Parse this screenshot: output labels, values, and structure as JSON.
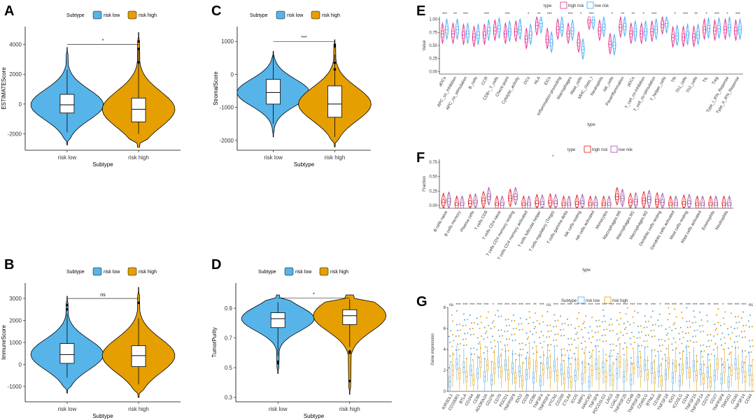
{
  "colors": {
    "risk_low": "#56B4E9",
    "risk_high": "#E69F00",
    "high_risk": "#E7298A",
    "low_risk": "#3FA9F5",
    "F_high": "#E41A1C",
    "F_low": "#984EA3",
    "G_low": "#4FA3E0",
    "G_high": "#E69F00"
  },
  "chart_data": [
    {
      "id": "A",
      "type": "violin",
      "panel_label": "A",
      "legend_title": "Subtype",
      "legend_items": [
        "risk low",
        "risk high"
      ],
      "xlabel": "Subtype",
      "ylabel": "ESTIMATEScore",
      "categories": [
        "risk low",
        "risk high"
      ],
      "ylim": [
        -3100,
        5200
      ],
      "yticks": [
        -2000,
        0,
        2000,
        4000
      ],
      "ytick_labels": [
        "-2000",
        "0",
        "2000",
        "4000"
      ],
      "significance": "*",
      "bracket_y": 4000,
      "groups": [
        {
          "name": "risk low",
          "min": -1900,
          "q1": -600,
          "median": -50,
          "q3": 650,
          "max": 2300,
          "top": 3800,
          "bottom": -2750,
          "outliers": []
        },
        {
          "name": "risk high",
          "min": -2000,
          "q1": -1200,
          "median": -350,
          "q3": 400,
          "max": 3700,
          "top": 4800,
          "bottom": -2900,
          "outliers": [
            2800,
            4200,
            3700
          ]
        }
      ]
    },
    {
      "id": "B",
      "type": "violin",
      "panel_label": "B",
      "legend_title": "Subtype",
      "legend_items": [
        "risk low",
        "risk high"
      ],
      "xlabel": "Subtype",
      "ylabel": "ImmuneScore",
      "categories": [
        "risk low",
        "risk high"
      ],
      "ylim": [
        -1700,
        3700
      ],
      "yticks": [
        -1000,
        0,
        1000,
        2000,
        3000
      ],
      "ytick_labels": [
        "-1000",
        "0",
        "1000",
        "2000",
        "3000"
      ],
      "significance": "ns",
      "bracket_y": 3000,
      "groups": [
        {
          "name": "risk low",
          "min": -600,
          "q1": 50,
          "median": 450,
          "q3": 950,
          "max": 2300,
          "top": 3100,
          "bottom": -1300,
          "outliers": [
            2500,
            2700
          ]
        },
        {
          "name": "risk high",
          "min": -900,
          "q1": -100,
          "median": 400,
          "q3": 850,
          "max": 2100,
          "top": 3500,
          "bottom": -1500,
          "outliers": [
            2800
          ]
        }
      ]
    },
    {
      "id": "C",
      "type": "violin",
      "panel_label": "C",
      "legend_title": "Subtype",
      "legend_items": [
        "risk low",
        "risk high"
      ],
      "xlabel": "Subtype",
      "ylabel": "StromalScore",
      "categories": [
        "risk low",
        "risk high"
      ],
      "ylim": [
        -2300,
        1450
      ],
      "yticks": [
        -2000,
        -1000,
        0,
        1000
      ],
      "ytick_labels": [
        "-2000",
        "-1000",
        "0",
        "1000"
      ],
      "significance": "***",
      "bracket_y": 1000,
      "groups": [
        {
          "name": "risk low",
          "min": -1500,
          "q1": -900,
          "median": -550,
          "q3": -150,
          "max": 600,
          "top": 700,
          "bottom": -1900,
          "outliers": []
        },
        {
          "name": "risk high",
          "min": -1900,
          "q1": -1300,
          "median": -900,
          "q3": -350,
          "max": 600,
          "top": 1050,
          "bottom": -2200,
          "outliers": [
            900,
            850,
            350,
            150
          ]
        }
      ]
    },
    {
      "id": "D",
      "type": "violin",
      "panel_label": "D",
      "legend_title": "Subtype",
      "legend_items": [
        "risk low",
        "risk high"
      ],
      "xlabel": "Subtype",
      "ylabel": "TumorPurity",
      "categories": [
        "risk low",
        "risk high"
      ],
      "ylim": [
        0.27,
        1.07
      ],
      "yticks": [
        0.3,
        0.5,
        0.7,
        0.9
      ],
      "ytick_labels": [
        "0.3",
        "0.5",
        "0.7",
        "0.9"
      ],
      "significance": "*",
      "bracket_y": 0.97,
      "groups": [
        {
          "name": "risk low",
          "min": 0.58,
          "q1": 0.77,
          "median": 0.83,
          "q3": 0.87,
          "max": 0.94,
          "top": 0.99,
          "bottom": 0.46,
          "outliers": [
            0.54,
            0.53
          ]
        },
        {
          "name": "risk high",
          "min": 0.64,
          "q1": 0.79,
          "median": 0.85,
          "q3": 0.89,
          "max": 0.96,
          "top": 0.99,
          "bottom": 0.32,
          "outliers": [
            0.6,
            0.41,
            0.61
          ]
        }
      ]
    },
    {
      "id": "E",
      "type": "grouped-violin",
      "panel_label": "E",
      "legend_title": "type",
      "legend_items": [
        "high risk",
        "low risk"
      ],
      "xlabel": "type",
      "ylabel": "Value",
      "ylim": [
        -0.05,
        1.05
      ],
      "yticks": [
        0,
        0.25,
        0.5,
        0.75,
        1.0
      ],
      "ytick_labels": [
        "0.00",
        "0.25",
        "0.50",
        "0.75",
        "1.00"
      ],
      "categories": [
        "aDCs",
        "APC_co_inhibition",
        "APC_co_stimulation",
        "B_cells",
        "CCR",
        "CD8+_T_cells",
        "Check-point",
        "Cytolytic_activity",
        "DCs",
        "HLA",
        "iDCs",
        "Inflammation-promoting",
        "Macrophages",
        "Mast_cells",
        "MHC_class_I",
        "Neutrophils",
        "NK_cells",
        "Parainflammation",
        "pDCs",
        "T_cell_co-inhibition",
        "T_cell_co-stimulation",
        "T_helper_cells",
        "Tfh",
        "Th1_cells",
        "Th2_cells",
        "TIL",
        "Treg",
        "Type_I_IFN_Reponse",
        "Type_II_IFN_Reponse"
      ],
      "significance": [
        "***",
        "**",
        "***",
        "",
        "***",
        "",
        "***",
        "",
        "*",
        "**",
        "***",
        "",
        "***",
        "*",
        "***",
        "",
        "*",
        "**",
        "**",
        "*",
        "***",
        "",
        "*",
        "***",
        "**",
        "*",
        "***",
        "*",
        "***"
      ],
      "medians_high": [
        0.72,
        0.72,
        0.7,
        0.66,
        0.7,
        0.78,
        0.72,
        0.76,
        0.62,
        0.88,
        0.62,
        0.8,
        0.72,
        0.55,
        0.99,
        0.78,
        0.52,
        0.84,
        0.72,
        0.72,
        0.76,
        0.9,
        0.65,
        0.66,
        0.66,
        0.8,
        0.78,
        0.8,
        0.78
      ],
      "medians_low": [
        0.8,
        0.8,
        0.72,
        0.7,
        0.78,
        0.82,
        0.76,
        0.8,
        0.7,
        0.92,
        0.55,
        0.85,
        0.78,
        0.42,
        0.99,
        0.85,
        0.5,
        0.86,
        0.76,
        0.76,
        0.8,
        0.92,
        0.68,
        0.7,
        0.7,
        0.82,
        0.82,
        0.84,
        0.8
      ]
    },
    {
      "id": "F",
      "type": "grouped-violin",
      "panel_label": "F",
      "legend_title": "type",
      "legend_items": [
        "high risk",
        "low risk"
      ],
      "xlabel": "type",
      "ylabel": "Fraction",
      "ylim": [
        -0.05,
        0.8
      ],
      "yticks": [
        0,
        0.25,
        0.5,
        0.75
      ],
      "ytick_labels": [
        "0.00",
        "0.25",
        "0.50",
        "0.75"
      ],
      "categories": [
        "B cells naive",
        "B cells memory",
        "Plasma cells",
        "T cells CD8",
        "T cells CD4 naive",
        "T cells CD4 memory resting",
        "T cells CD4 memory activated",
        "T cells follicular helper",
        "T cells regulatory (Tregs)",
        "T cells gamma delta",
        "NK cells resting",
        "NK cells activated",
        "Monocytes",
        "Macrophages M0",
        "Macrophages M1",
        "Macrophages M2",
        "Dendritic cells resting",
        "Dendritic cells activated",
        "Mast cells resting",
        "Mast cells activated",
        "Eosinophils",
        "Neutrophils"
      ],
      "significance": [
        "",
        "",
        "",
        "",
        "",
        "",
        "",
        "",
        "*",
        "",
        "",
        "",
        "",
        "",
        "",
        "",
        "",
        "",
        "",
        "",
        "",
        ""
      ],
      "medians_high": [
        0.05,
        0.0,
        0.03,
        0.08,
        0.0,
        0.12,
        0.0,
        0.03,
        0.04,
        0.0,
        0.02,
        0.0,
        0.0,
        0.15,
        0.05,
        0.08,
        0.06,
        0.0,
        0.02,
        0.0,
        0.0,
        0.0
      ],
      "medians_low": [
        0.07,
        0.0,
        0.04,
        0.15,
        0.0,
        0.15,
        0.0,
        0.02,
        0.03,
        0.0,
        0.03,
        0.0,
        0.0,
        0.12,
        0.06,
        0.1,
        0.05,
        0.0,
        0.03,
        0.0,
        0.0,
        0.0
      ]
    },
    {
      "id": "G",
      "type": "grouped-box",
      "panel_label": "G",
      "legend_title": "Subtype",
      "legend_items": [
        "risk low",
        "risk high"
      ],
      "xlabel": "",
      "ylabel": "Gene expression",
      "ylim": [
        0,
        8
      ],
      "yticks": [
        0,
        2,
        4,
        6,
        8
      ],
      "ytick_labels": [
        "0",
        "2",
        "4",
        "6",
        "8"
      ],
      "categories": [
        "KIR3DL1",
        "CD200R1",
        "BTLA",
        "CD244",
        "CD86",
        "ADORA2A",
        "CD276",
        "CD70",
        "PDCD1",
        "TNFRSF9",
        "IDO2",
        "CD28",
        "CD80",
        "TNFSF4",
        "TNFRSF4",
        "VTCN1",
        "CD200",
        "CTLA4",
        "ICOS",
        "NRP1",
        "HAVCR2",
        "TNFSF9",
        "PDCD1LG2",
        "LAG3",
        "LGALS9",
        "TNFRSF25",
        "CD48",
        "TNFRSF18",
        "CD40LG",
        "BTNL2",
        "CD160",
        "TNFSF18",
        "IDO1",
        "ICOSLG",
        "CD44",
        "TNFSF15",
        "TNFRSF14",
        "CD274",
        "CD27",
        "TNFRSF8",
        "TMIGD2",
        "CD40",
        "TNFSF14",
        "CD44"
      ],
      "significance": [
        "ns",
        "***",
        "***",
        "***",
        "***",
        "***",
        "*",
        "***",
        "***",
        "***",
        "***",
        "***",
        "**",
        "***",
        "ns",
        "***",
        "***",
        "***",
        "***",
        "***",
        "***",
        "***",
        "***",
        "***",
        "***",
        "***",
        "***",
        "***",
        "**",
        "***",
        "*",
        "***",
        "***",
        "**",
        "***",
        "***",
        "***",
        "**",
        "***",
        "*",
        "***",
        "***",
        "***",
        "ns"
      ]
    }
  ]
}
